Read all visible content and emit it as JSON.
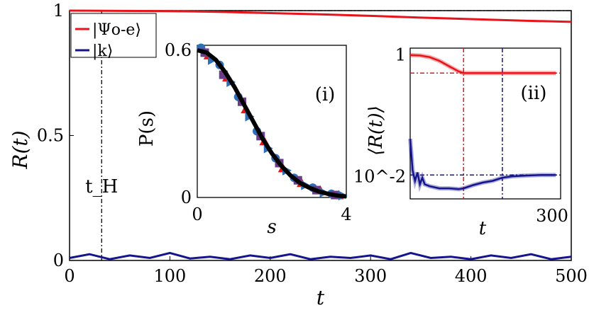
{
  "chart_data": [
    {
      "type": "line",
      "xlabel": "t",
      "ylabel": "R(t)",
      "xlim": [
        0,
        500
      ],
      "ylim": [
        0,
        1
      ],
      "xticks": [
        0,
        100,
        200,
        300,
        400,
        500
      ],
      "yticks": [
        0,
        0.5,
        1
      ],
      "xtick_labels": [
        "0",
        "100",
        "200",
        "300",
        "400",
        "500"
      ],
      "ytick_labels": [
        "0",
        "0.5",
        "1"
      ],
      "legend_position": "top-left",
      "annotation": "t_H",
      "t_H": 32,
      "reference_line_y": 1.0,
      "series": [
        {
          "name": "|Ψo-e⟩",
          "color": "#e8141a",
          "x": [
            0,
            50,
            100,
            150,
            200,
            250,
            300,
            350,
            400,
            450,
            500
          ],
          "y": [
            1.0,
            0.999,
            0.998,
            0.995,
            0.99,
            0.985,
            0.979,
            0.972,
            0.966,
            0.96,
            0.955
          ]
        },
        {
          "name": "|k⟩",
          "color": "#14148c",
          "x": [
            0,
            20,
            40,
            60,
            80,
            100,
            120,
            140,
            160,
            180,
            200,
            220,
            240,
            260,
            280,
            300,
            320,
            340,
            360,
            380,
            400,
            420,
            440,
            460,
            480,
            500
          ],
          "y": [
            0.01,
            0.025,
            0.005,
            0.02,
            0.01,
            0.03,
            0.008,
            0.015,
            0.005,
            0.02,
            0.01,
            0.025,
            0.005,
            0.015,
            0.01,
            0.02,
            0.005,
            0.03,
            0.01,
            0.015,
            0.005,
            0.02,
            0.01,
            0.025,
            0.005,
            0.015
          ]
        }
      ]
    },
    {
      "type": "scatter",
      "label": "(i)",
      "xlabel": "s",
      "ylabel": "P(s)",
      "xlim": [
        0,
        4
      ],
      "ylim": [
        0,
        0.62
      ],
      "xtick_labels": [
        "0",
        "s",
        "4"
      ],
      "ytick_labels": [
        "0",
        "0.6"
      ],
      "fit": {
        "color": "#000000",
        "x": [
          0,
          0.25,
          0.5,
          0.75,
          1.0,
          1.25,
          1.5,
          1.75,
          2.0,
          2.25,
          2.5,
          2.75,
          3.0,
          3.25,
          3.5,
          3.75,
          4.0
        ],
        "y": [
          0.6,
          0.59,
          0.56,
          0.51,
          0.45,
          0.38,
          0.31,
          0.24,
          0.18,
          0.13,
          0.09,
          0.06,
          0.04,
          0.025,
          0.015,
          0.008,
          0.004
        ]
      },
      "markers": [
        {
          "color": "#2e6fb8",
          "shape": "circle",
          "x": [
            0.1,
            0.6,
            1.1,
            1.6,
            2.1,
            2.6,
            3.1,
            3.6
          ],
          "y": [
            0.61,
            0.54,
            0.41,
            0.27,
            0.16,
            0.08,
            0.04,
            0.015
          ]
        },
        {
          "color": "#e8141a",
          "shape": "triangle",
          "x": [
            0.3,
            0.8,
            1.3,
            1.8,
            2.3,
            2.8,
            3.3,
            3.8
          ],
          "y": [
            0.58,
            0.49,
            0.36,
            0.23,
            0.12,
            0.06,
            0.03,
            0.01
          ]
        },
        {
          "color": "#6a3d8a",
          "shape": "square",
          "x": [
            0.2,
            0.7,
            1.2,
            1.7,
            2.2,
            2.7,
            3.2,
            3.7
          ],
          "y": [
            0.59,
            0.5,
            0.39,
            0.25,
            0.14,
            0.07,
            0.03,
            0.01
          ]
        },
        {
          "color": "#2e6fb8",
          "shape": "triangle-right",
          "x": [
            0.4,
            0.9,
            1.4,
            1.9,
            2.4,
            2.9,
            3.4,
            3.9
          ],
          "y": [
            0.56,
            0.47,
            0.33,
            0.2,
            0.11,
            0.05,
            0.02,
            0.008
          ]
        }
      ]
    },
    {
      "type": "line",
      "label": "(ii)",
      "xlabel": "t",
      "ylabel": "⟨R(t)⟩",
      "yscale": "log",
      "xlim": [
        0,
        310
      ],
      "ylim": [
        0.004,
        1.3
      ],
      "xtick_labels": [
        "300"
      ],
      "ytick_labels": [
        "1",
        "10^-2"
      ],
      "vlines": [
        {
          "x": 110,
          "color": "#e8141a"
        },
        {
          "x": 190,
          "color": "#14148c"
        }
      ],
      "hlines": [
        {
          "y": 0.5,
          "color": "#e8141a"
        },
        {
          "y": 0.01,
          "color": "#14148c"
        }
      ],
      "series": [
        {
          "color": "#e8141a",
          "x": [
            0,
            20,
            40,
            60,
            80,
            100,
            110,
            120,
            150,
            200,
            250,
            300
          ],
          "y": [
            1.0,
            0.98,
            0.92,
            0.8,
            0.65,
            0.53,
            0.5,
            0.5,
            0.5,
            0.5,
            0.5,
            0.5
          ]
        },
        {
          "color": "#14148c",
          "x": [
            0,
            5,
            10,
            15,
            20,
            25,
            30,
            40,
            60,
            80,
            100,
            110,
            130,
            150,
            170,
            190,
            210,
            240,
            270,
            300
          ],
          "y": [
            0.04,
            0.012,
            0.008,
            0.011,
            0.007,
            0.009,
            0.007,
            0.0065,
            0.006,
            0.006,
            0.0058,
            0.006,
            0.0068,
            0.0075,
            0.008,
            0.009,
            0.0095,
            0.0098,
            0.01,
            0.01
          ]
        }
      ]
    }
  ]
}
